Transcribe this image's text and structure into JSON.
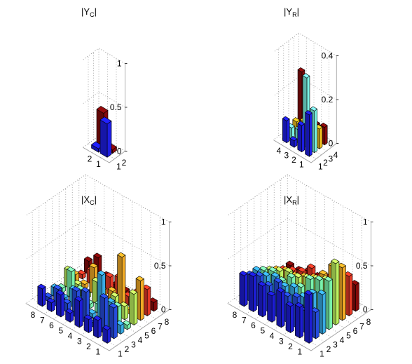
{
  "chart_data": [
    {
      "type": "bar3d",
      "title": "|Y",
      "title_sub": "C",
      "title_end": "|",
      "n": 2,
      "zlim": [
        0,
        1
      ],
      "zticks": [
        "0",
        "0.5",
        "1"
      ],
      "row_ticks": [
        "1",
        "2"
      ],
      "col_ticks": [
        "1",
        "2"
      ],
      "grid": true,
      "values": [
        [
          0.38,
          0.04
        ],
        [
          0.04,
          0.4
        ]
      ],
      "colors": [
        [
          "#1f1ff0",
          "#8b0a0a"
        ],
        [
          "#1f1ff0",
          "#8b0a0a"
        ]
      ]
    },
    {
      "type": "bar3d",
      "title": "|Y",
      "title_sub": "R",
      "title_end": "|",
      "n": 4,
      "zlim": [
        0,
        0.4
      ],
      "zticks": [
        "0",
        "0.2",
        "0.4"
      ],
      "row_ticks": [
        "1",
        "2",
        "3",
        "4"
      ],
      "col_ticks": [
        "1",
        "2",
        "3",
        "4"
      ],
      "grid": true,
      "values": [
        [
          0.19,
          0.19,
          0.09,
          0.08
        ],
        [
          0.12,
          0.32,
          0.1,
          0.07
        ],
        [
          0.03,
          0.06,
          0.08,
          0.1
        ],
        [
          0.1,
          0.05,
          0.06,
          0.27
        ]
      ],
      "colors": [
        [
          "#1f1ff0",
          "#7fffef",
          "#ffcc22",
          "#8b0a0a"
        ],
        [
          "#1f1ff0",
          "#7fffef",
          "#ffcc22",
          "#8b0a0a"
        ],
        [
          "#1f1ff0",
          "#7fffef",
          "#ffcc22",
          "#8b0a0a"
        ],
        [
          "#1f1ff0",
          "#7fffef",
          "#ffcc22",
          "#8b0a0a"
        ]
      ]
    },
    {
      "type": "bar3d",
      "title": "|X",
      "title_sub": "C",
      "title_end": "|",
      "n": 8,
      "zlim": [
        0,
        1
      ],
      "zticks": [
        "0",
        "0.5",
        "1"
      ],
      "row_ticks": [
        "1",
        "2",
        "3",
        "4",
        "5",
        "6",
        "7",
        "8"
      ],
      "col_ticks": [
        "1",
        "2",
        "3",
        "4",
        "5",
        "6",
        "7",
        "8"
      ],
      "grid": true,
      "values": [
        [
          0.15,
          0.35,
          0.1,
          0.05,
          0.35,
          0.45,
          0.3,
          0.1
        ],
        [
          0.2,
          0.4,
          0.3,
          0.2,
          0.15,
          0.05,
          0.2,
          0.1
        ],
        [
          0.15,
          0.05,
          0.55,
          0.1,
          0.2,
          0.6,
          0.1,
          0.05
        ],
        [
          0.3,
          0.35,
          0.05,
          0.1,
          0.05,
          0.15,
          0.25,
          0.05
        ],
        [
          0.1,
          0.3,
          0.15,
          0.05,
          0.25,
          0.1,
          0.2,
          0.05
        ],
        [
          0.25,
          0.1,
          0.2,
          0.15,
          0.05,
          0.3,
          0.05,
          0.1
        ],
        [
          0.1,
          0.2,
          0.05,
          0.3,
          0.1,
          0.05,
          0.15,
          0.25
        ],
        [
          0.2,
          0.05,
          0.1,
          0.05,
          0.2,
          0.1,
          0.05,
          0.15
        ]
      ],
      "colors": [
        [
          "#1e1ee0",
          "#2850e8",
          "#3cb4f0",
          "#7fffb4",
          "#c8ff64",
          "#ffb428",
          "#f03c28",
          "#8b0a0a"
        ],
        [
          "#1e1ee0",
          "#2850e8",
          "#3cb4f0",
          "#7fffb4",
          "#c8ff64",
          "#ffb428",
          "#f03c28",
          "#8b0a0a"
        ],
        [
          "#1e1ee0",
          "#2850e8",
          "#3cb4f0",
          "#7fffb4",
          "#c8ff64",
          "#ffb428",
          "#f03c28",
          "#8b0a0a"
        ],
        [
          "#1e1ee0",
          "#2850e8",
          "#3cb4f0",
          "#7fffb4",
          "#c8ff64",
          "#ffb428",
          "#f03c28",
          "#8b0a0a"
        ],
        [
          "#1e1ee0",
          "#2850e8",
          "#3cb4f0",
          "#7fffb4",
          "#c8ff64",
          "#ffb428",
          "#f03c28",
          "#8b0a0a"
        ],
        [
          "#1e1ee0",
          "#2850e8",
          "#3cb4f0",
          "#7fffb4",
          "#c8ff64",
          "#ffb428",
          "#f03c28",
          "#8b0a0a"
        ],
        [
          "#1e1ee0",
          "#2850e8",
          "#3cb4f0",
          "#7fffb4",
          "#c8ff64",
          "#ffb428",
          "#f03c28",
          "#8b0a0a"
        ],
        [
          "#1e1ee0",
          "#2850e8",
          "#3cb4f0",
          "#7fffb4",
          "#c8ff64",
          "#ffb428",
          "#f03c28",
          "#8b0a0a"
        ]
      ]
    },
    {
      "type": "bar3d",
      "title": "|X",
      "title_sub": "R",
      "title_end": "|",
      "n": 8,
      "zlim": [
        0,
        1
      ],
      "zticks": [
        "0",
        "0.5",
        "1"
      ],
      "row_ticks": [
        "1",
        "2",
        "3",
        "4",
        "5",
        "6",
        "7",
        "8"
      ],
      "col_ticks": [
        "1",
        "2",
        "3",
        "4",
        "5",
        "6",
        "7",
        "8"
      ],
      "grid": true,
      "values": [
        [
          0.55,
          0.3,
          0.45,
          0.55,
          0.7,
          0.6,
          0.45,
          0.3
        ],
        [
          0.35,
          0.25,
          0.4,
          0.5,
          0.45,
          0.55,
          0.35,
          0.25
        ],
        [
          0.3,
          0.35,
          0.3,
          0.45,
          0.4,
          0.4,
          0.3,
          0.2
        ],
        [
          0.4,
          0.3,
          0.35,
          0.3,
          0.35,
          0.3,
          0.25,
          0.2
        ],
        [
          0.3,
          0.4,
          0.3,
          0.35,
          0.3,
          0.25,
          0.3,
          0.15
        ],
        [
          0.35,
          0.3,
          0.35,
          0.25,
          0.3,
          0.2,
          0.2,
          0.15
        ],
        [
          0.4,
          0.35,
          0.3,
          0.3,
          0.25,
          0.2,
          0.15,
          0.1
        ],
        [
          0.35,
          0.3,
          0.3,
          0.25,
          0.2,
          0.15,
          0.1,
          0.1
        ]
      ],
      "colors": [
        [
          "#1e1ee0",
          "#2850e8",
          "#3cb4f0",
          "#7fffb4",
          "#c8ff64",
          "#ffb428",
          "#f03c28",
          "#8b0a0a"
        ],
        [
          "#1e1ee0",
          "#2850e8",
          "#3cb4f0",
          "#7fffb4",
          "#c8ff64",
          "#ffb428",
          "#f03c28",
          "#8b0a0a"
        ],
        [
          "#1e1ee0",
          "#2850e8",
          "#3cb4f0",
          "#7fffb4",
          "#c8ff64",
          "#ffb428",
          "#f03c28",
          "#8b0a0a"
        ],
        [
          "#1e1ee0",
          "#2850e8",
          "#3cb4f0",
          "#7fffb4",
          "#c8ff64",
          "#ffb428",
          "#f03c28",
          "#8b0a0a"
        ],
        [
          "#1e1ee0",
          "#2850e8",
          "#3cb4f0",
          "#7fffb4",
          "#c8ff64",
          "#ffb428",
          "#f03c28",
          "#8b0a0a"
        ],
        [
          "#1e1ee0",
          "#2850e8",
          "#3cb4f0",
          "#7fffb4",
          "#c8ff64",
          "#ffb428",
          "#f03c28",
          "#8b0a0a"
        ],
        [
          "#1e1ee0",
          "#2850e8",
          "#3cb4f0",
          "#7fffb4",
          "#c8ff64",
          "#ffb428",
          "#f03c28",
          "#8b0a0a"
        ],
        [
          "#1e1ee0",
          "#2850e8",
          "#3cb4f0",
          "#7fffb4",
          "#c8ff64",
          "#ffb428",
          "#f03c28",
          "#8b0a0a"
        ]
      ]
    }
  ]
}
